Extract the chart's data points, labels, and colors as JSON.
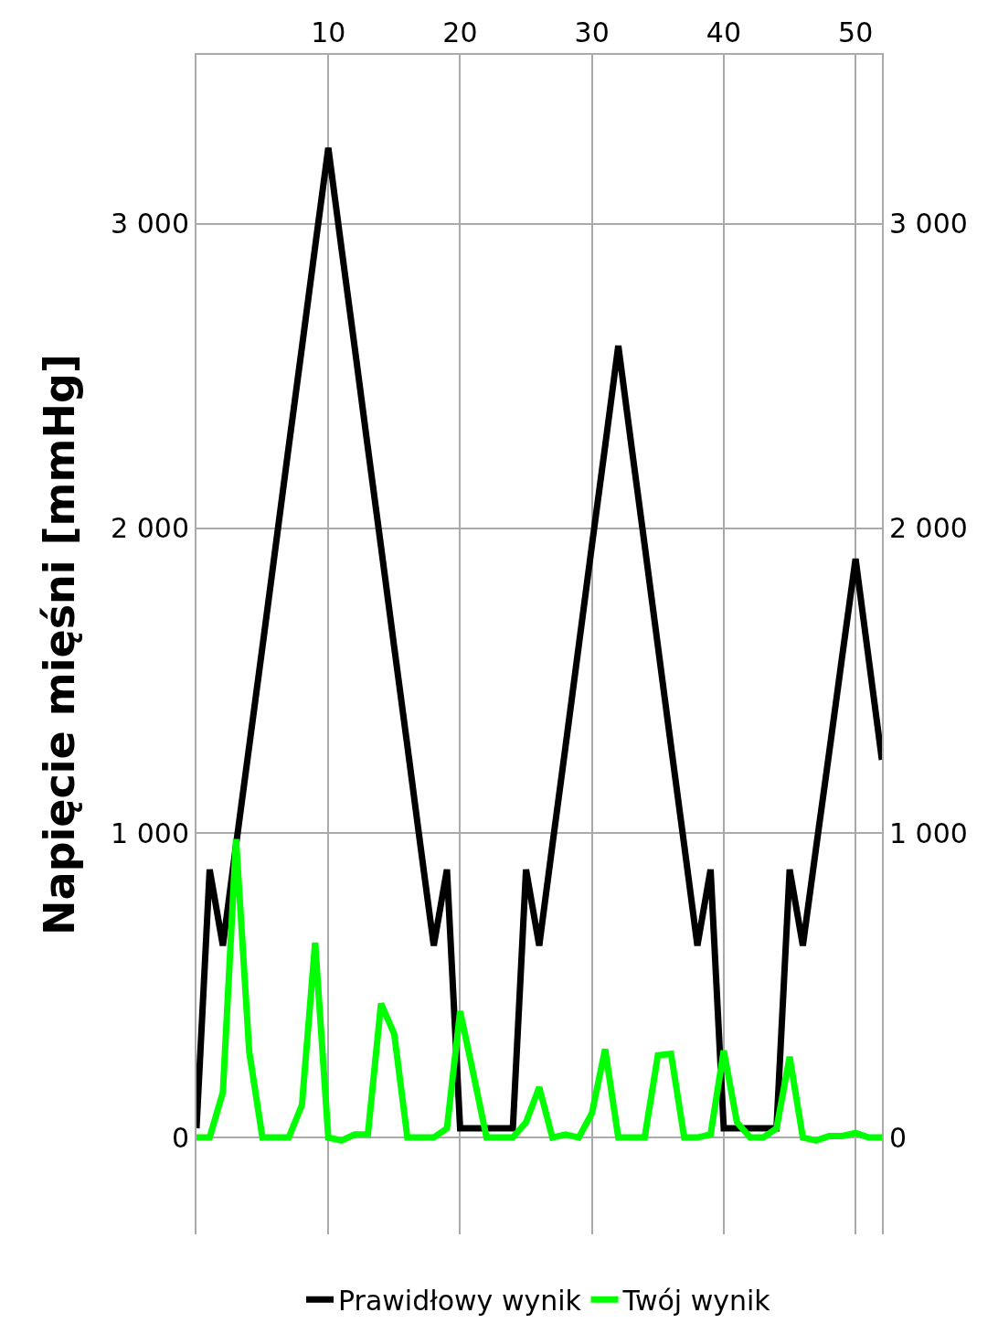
{
  "chart_data": {
    "type": "line",
    "ylabel": "Napięcie mięśni [mmHg]",
    "x": [
      0,
      1,
      2,
      3,
      4,
      5,
      6,
      7,
      8,
      9,
      10,
      11,
      12,
      13,
      14,
      15,
      16,
      17,
      18,
      19,
      20,
      21,
      22,
      23,
      24,
      25,
      26,
      27,
      28,
      29,
      30,
      31,
      32,
      33,
      34,
      35,
      36,
      37,
      38,
      39,
      40,
      41,
      42,
      43,
      44,
      45,
      46,
      47,
      48,
      49,
      50,
      51,
      52
    ],
    "series": [
      {
        "name": "Prawidłowy wynik",
        "color": "#000000",
        "values": [
          30,
          880,
          630,
          960,
          1285,
          1610,
          1940,
          2270,
          2595,
          2925,
          3250,
          2920,
          2595,
          2265,
          1940,
          1610,
          1285,
          955,
          630,
          880,
          30,
          30,
          30,
          30,
          30,
          880,
          630,
          960,
          1285,
          1615,
          1945,
          2270,
          2600,
          2270,
          1945,
          1615,
          1285,
          960,
          630,
          880,
          30,
          30,
          30,
          30,
          30,
          880,
          630,
          950,
          1265,
          1585,
          1900,
          1570,
          1240
        ]
      },
      {
        "name": "Twój wynik",
        "color": "#00ff00",
        "values": [
          0,
          0,
          148,
          980,
          282,
          0,
          0,
          0,
          107,
          640,
          0,
          -10,
          10,
          10,
          440,
          340,
          0,
          0,
          0,
          30,
          415,
          210,
          0,
          0,
          0,
          50,
          165,
          0,
          10,
          0,
          80,
          290,
          0,
          0,
          0,
          270,
          275,
          0,
          0,
          10,
          285,
          50,
          0,
          0,
          30,
          265,
          0,
          -10,
          5,
          5,
          15,
          0,
          0
        ]
      }
    ],
    "xlim": [
      0,
      52
    ],
    "xticks": [
      10,
      20,
      30,
      40,
      50
    ],
    "ylim": [
      -318,
      3555
    ],
    "yticks": [
      0,
      {
        "value": 1000,
        "label": "1 000"
      },
      {
        "value": 2000,
        "label": "2 000"
      },
      {
        "value": 3000,
        "label": "3 000"
      }
    ],
    "y2lim": [
      -318,
      3555
    ],
    "y2ticks": [
      0,
      {
        "value": 1000,
        "label": "1 000"
      },
      {
        "value": 2000,
        "label": "2 000"
      },
      {
        "value": 3000,
        "label": "3 000"
      }
    ],
    "grid": true,
    "legend": "bottom",
    "marker": "none",
    "line_style": "solid"
  }
}
